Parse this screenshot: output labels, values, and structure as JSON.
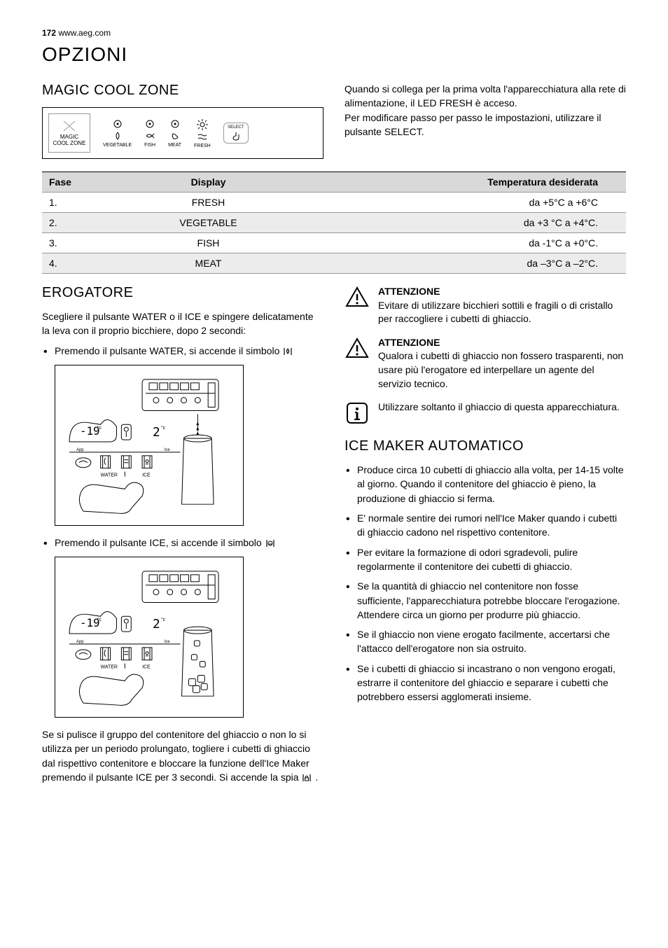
{
  "header": {
    "page": "172",
    "url": "www.aeg.com"
  },
  "title": "OPZIONI",
  "magic_cool": {
    "heading": "MAGIC COOL ZONE",
    "panel": {
      "zone_label": "MAGIC COOL ZONE",
      "icons": [
        "VEGETABLE",
        "FISH",
        "MEAT",
        "FRESH"
      ],
      "select_label": "SELECT"
    },
    "intro1": "Quando si collega per la prima volta l'apparecchiatura alla rete di alimentazione, il LED FRESH è acceso.",
    "intro2": "Per modificare passo per passo le impostazioni, utilizzare il pulsante SELECT."
  },
  "table": {
    "headers": [
      "Fase",
      "Display",
      "Temperatura desiderata"
    ],
    "rows": [
      [
        "1.",
        "FRESH",
        "da +5°C a +6°C"
      ],
      [
        "2.",
        "VEGETABLE",
        "da +3 °C a +4°C."
      ],
      [
        "3.",
        "FISH",
        "da -1°C a +0°C."
      ],
      [
        "4.",
        "MEAT",
        "da –3°C a –2°C."
      ]
    ]
  },
  "erogatore": {
    "heading": "EROGATORE",
    "p1": "Scegliere il pulsante WATER o il ICE e spingere delicatamente la leva con il proprio bicchiere, dopo 2 secondi:",
    "li1a": "Premendo il pulsante WATER, si accende il simbolo ",
    "li2a": "Premendo il pulsante ICE, si accende il simbolo ",
    "p2a": "Se si pulisce il gruppo del contenitore del ghiaccio o non lo si utilizza per un periodo prolungato, togliere i cubetti di ghiaccio dal rispettivo contenitore e bloccare la funzione dell'Ice Maker premendo il pulsante ICE per 3 secondi. Si accende la spia ",
    "p2b": " ."
  },
  "warnings": {
    "w1_title": "ATTENZIONE",
    "w1_body": "Evitare di utilizzare bicchieri sottili e fragili o di cristallo per raccogliere i cubetti di ghiaccio.",
    "w2_title": "ATTENZIONE",
    "w2_body": "Qualora i cubetti di ghiaccio non fossero trasparenti, non usare più l'erogatore ed interpellare un agente del servizio tecnico.",
    "info_body": "Utilizzare soltanto il ghiaccio di questa apparecchiatura."
  },
  "ice_maker": {
    "heading": "ICE MAKER AUTOMATICO",
    "items": [
      "Produce circa 10 cubetti di ghiaccio alla volta, per 14-15 volte al giorno. Quando il contenitore del ghiaccio è pieno, la produzione di ghiaccio si ferma.",
      "E' normale sentire dei rumori nell'Ice Maker quando i cubetti di ghiaccio cadono nel rispettivo contenitore.",
      "Per evitare la formazione di odori sgradevoli, pulire regolarmente il contenitore dei cubetti di ghiaccio.",
      "Se la quantità di ghiaccio nel contenitore non fosse sufficiente, l'apparecchiatura potrebbe bloccare l'erogazione. Attendere circa un giorno per produrre più ghiaccio.",
      "Se il ghiaccio non viene erogato facilmente, accertarsi che l'attacco dell'erogatore non sia ostruito.",
      "Se i cubetti di ghiaccio si incastrano o non vengono erogati, estrarre il contenitore del ghiaccio e separare i cubetti che potrebbero essersi agglomerati insieme."
    ]
  }
}
